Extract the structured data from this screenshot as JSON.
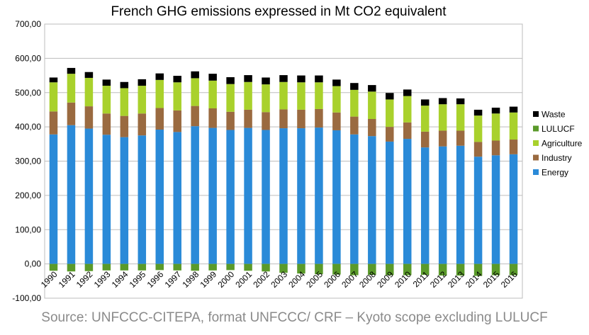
{
  "caption": "Source: UNFCCC-CITEPA, format UNFCCC/ CRF – Kyoto scope excluding LULUCF",
  "chart_data": {
    "type": "bar",
    "stacked": true,
    "title": "French GHG emissions expressed in Mt CO2 equivalent",
    "xlabel": "",
    "ylabel": "",
    "ylim": [
      -100,
      700
    ],
    "yticks": [
      -100,
      0,
      100,
      200,
      300,
      400,
      500,
      600,
      700
    ],
    "ytick_labels": [
      "-100,00",
      "0,00",
      "100,00",
      "200,00",
      "300,00",
      "400,00",
      "500,00",
      "600,00",
      "700,00"
    ],
    "grid": true,
    "legend_position": "right",
    "categories": [
      "1990",
      "1991",
      "1992",
      "1993",
      "1994",
      "1995",
      "1996",
      "1997",
      "1998",
      "1999",
      "2000",
      "2001",
      "2002",
      "2003",
      "2004",
      "2005",
      "2006",
      "2007",
      "2008",
      "2009",
      "2010",
      "2011",
      "2012",
      "2013",
      "2014",
      "2015",
      "2016"
    ],
    "series": [
      {
        "name": "Energy",
        "color": "#2a8ad8",
        "values": [
          378,
          405,
          395,
          377,
          370,
          375,
          392,
          385,
          402,
          397,
          391,
          397,
          391,
          396,
          396,
          398,
          390,
          378,
          373,
          357,
          365,
          340,
          343,
          345,
          313,
          317,
          320
        ]
      },
      {
        "name": "Industry",
        "color": "#9a6a40",
        "values": [
          67,
          66,
          65,
          62,
          62,
          64,
          63,
          63,
          59,
          57,
          53,
          53,
          52,
          55,
          54,
          54,
          52,
          52,
          50,
          43,
          48,
          46,
          46,
          44,
          43,
          43,
          43
        ]
      },
      {
        "name": "Agriculture",
        "color": "#a9d12c",
        "values": [
          85,
          84,
          83,
          81,
          81,
          81,
          82,
          82,
          81,
          81,
          81,
          81,
          81,
          80,
          80,
          78,
          77,
          78,
          80,
          80,
          77,
          76,
          77,
          77,
          77,
          79,
          79
        ]
      },
      {
        "name": "LULUCF",
        "color": "#5a9a2a",
        "values": [
          -20,
          -22,
          -21,
          -19,
          -19,
          -19,
          -18,
          -19,
          -20,
          -19,
          -18,
          -20,
          -22,
          -26,
          -28,
          -30,
          -31,
          -33,
          -32,
          -33,
          -33,
          -32,
          -34,
          -34,
          -35,
          -33,
          -33
        ]
      },
      {
        "name": "Waste",
        "color": "#000000",
        "values": [
          14,
          17,
          17,
          18,
          18,
          19,
          19,
          19,
          20,
          20,
          20,
          20,
          20,
          20,
          20,
          20,
          19,
          20,
          19,
          19,
          19,
          18,
          18,
          17,
          17,
          17,
          17
        ]
      }
    ],
    "legend_order": [
      "Waste",
      "LULUCF",
      "Agriculture",
      "Industry",
      "Energy"
    ]
  }
}
